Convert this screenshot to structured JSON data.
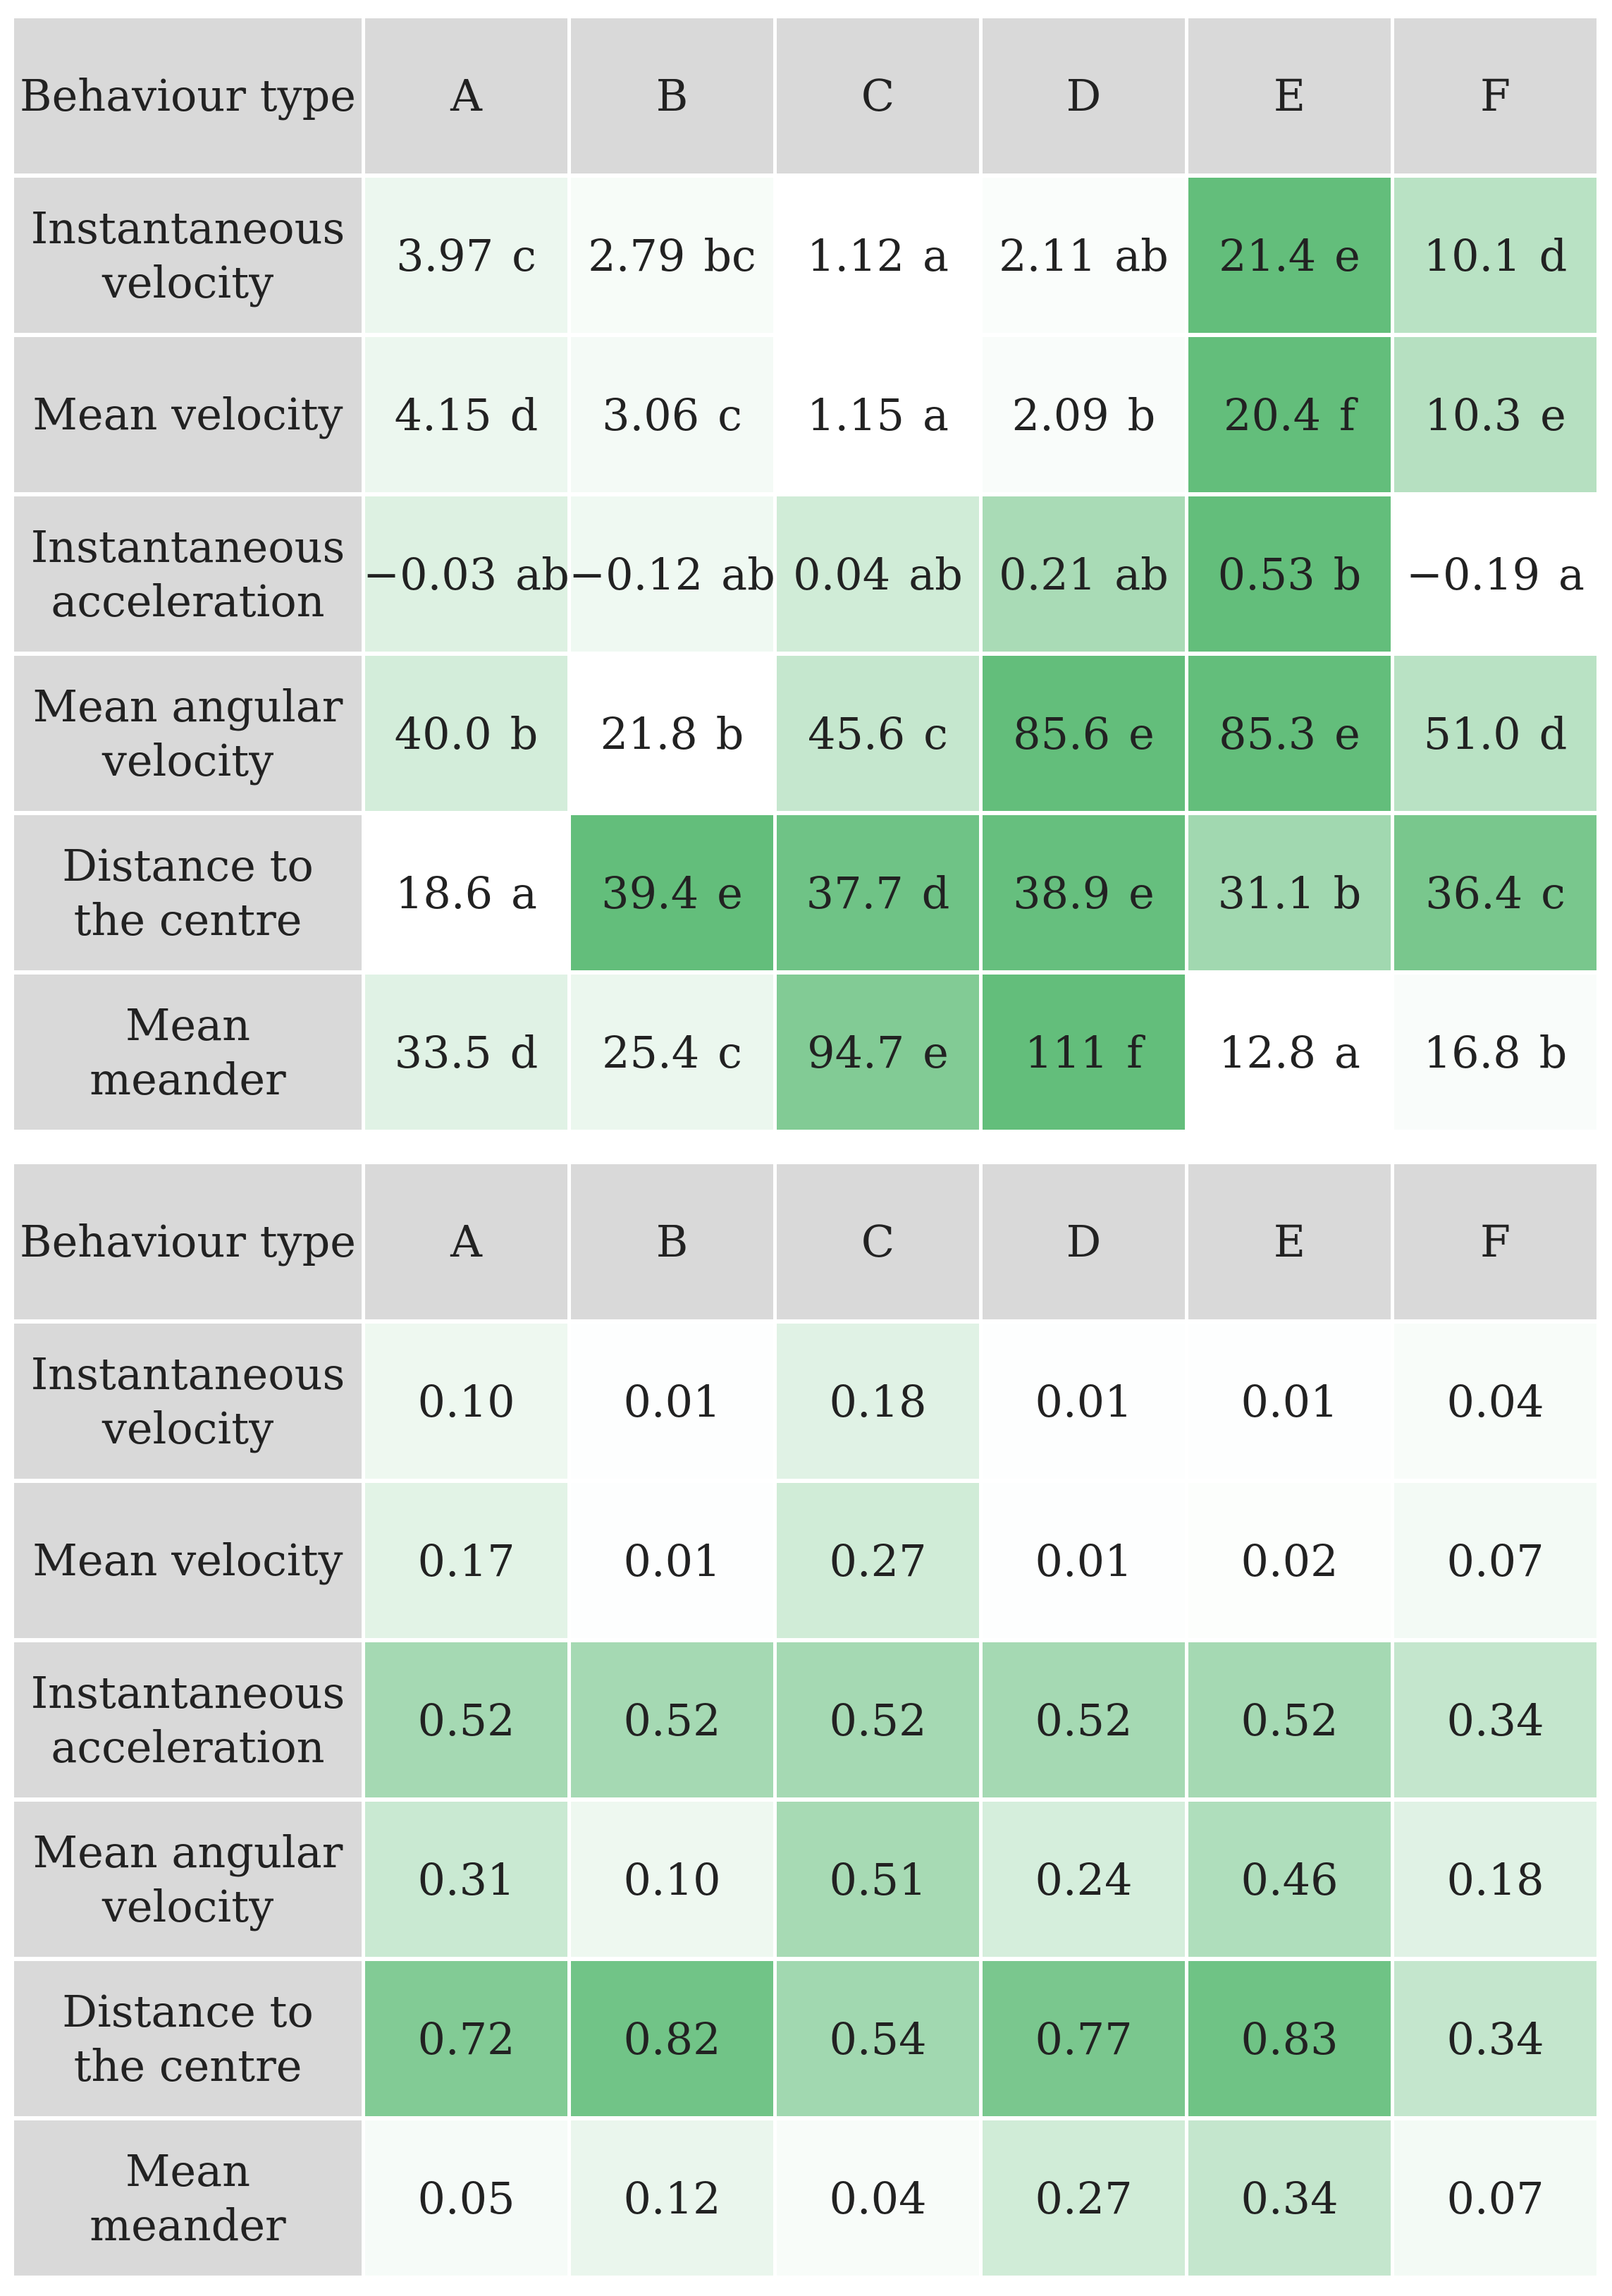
{
  "chart_data": [
    {
      "type": "heatmap",
      "corner_label": "Behaviour type",
      "columns": [
        "A",
        "B",
        "C",
        "D",
        "E",
        "F"
      ],
      "rows": [
        {
          "label": "Instantaneous velocity",
          "values": [
            "3.97",
            "2.79",
            "1.12",
            "2.11",
            "21.4",
            "10.1"
          ],
          "letters": [
            "c",
            "bc",
            "a",
            "ab",
            "e",
            "d"
          ],
          "intensity": [
            0.12,
            0.05,
            0.0,
            0.03,
            1.0,
            0.45
          ]
        },
        {
          "label": "Mean velocity",
          "values": [
            "4.15",
            "3.06",
            "1.15",
            "2.09",
            "20.4",
            "10.3"
          ],
          "letters": [
            "d",
            "c",
            "a",
            "b",
            "f",
            "e"
          ],
          "intensity": [
            0.12,
            0.07,
            0.0,
            0.04,
            1.0,
            0.47
          ]
        },
        {
          "label": "Instantaneous acceleration",
          "values": [
            "−0.03",
            "−0.12",
            "0.04",
            "0.21",
            "0.53",
            "−0.19"
          ],
          "letters": [
            "ab",
            "ab",
            "ab",
            "ab",
            "b",
            "a"
          ],
          "intensity": [
            0.22,
            0.1,
            0.3,
            0.55,
            1.0,
            0.0
          ]
        },
        {
          "label": "Mean angular velocity",
          "values": [
            "40.0",
            "21.8",
            "45.6",
            "85.6",
            "85.3",
            "51.0"
          ],
          "letters": [
            "b",
            "b",
            "c",
            "e",
            "e",
            "d"
          ],
          "intensity": [
            0.28,
            0.0,
            0.37,
            1.0,
            1.0,
            0.45
          ]
        },
        {
          "label": "Distance to the centre",
          "values": [
            "18.6",
            "39.4",
            "37.7",
            "38.9",
            "31.1",
            "36.4"
          ],
          "letters": [
            "a",
            "e",
            "d",
            "e",
            "b",
            "c"
          ],
          "intensity": [
            0.0,
            1.0,
            0.92,
            0.98,
            0.6,
            0.86
          ]
        },
        {
          "label": "Mean meander",
          "values": [
            "33.5",
            "25.4",
            "94.7",
            "111",
            "12.8",
            "16.8"
          ],
          "letters": [
            "d",
            "c",
            "e",
            "f",
            "a",
            "b"
          ],
          "intensity": [
            0.2,
            0.13,
            0.8,
            1.0,
            0.0,
            0.04
          ]
        }
      ]
    },
    {
      "type": "heatmap",
      "corner_label": "Behaviour type",
      "columns": [
        "A",
        "B",
        "C",
        "D",
        "E",
        "F"
      ],
      "rows": [
        {
          "label": "Instantaneous velocity",
          "values": [
            "0.10",
            "0.01",
            "0.18",
            "0.01",
            "0.01",
            "0.04"
          ]
        },
        {
          "label": "Mean velocity",
          "values": [
            "0.17",
            "0.01",
            "0.27",
            "0.01",
            "0.02",
            "0.07"
          ]
        },
        {
          "label": "Instantaneous acceleration",
          "values": [
            "0.52",
            "0.52",
            "0.52",
            "0.52",
            "0.52",
            "0.34"
          ]
        },
        {
          "label": "Mean angular velocity",
          "values": [
            "0.31",
            "0.10",
            "0.51",
            "0.24",
            "0.46",
            "0.18"
          ]
        },
        {
          "label": "Distance to the centre",
          "values": [
            "0.72",
            "0.82",
            "0.54",
            "0.77",
            "0.83",
            "0.34"
          ]
        },
        {
          "label": "Mean meander",
          "values": [
            "0.05",
            "0.12",
            "0.04",
            "0.27",
            "0.34",
            "0.07"
          ]
        }
      ],
      "scale_max": 0.9
    }
  ],
  "colors": {
    "low": "#ffffff",
    "high": "#63be7b",
    "header": "#d9d9d9"
  }
}
